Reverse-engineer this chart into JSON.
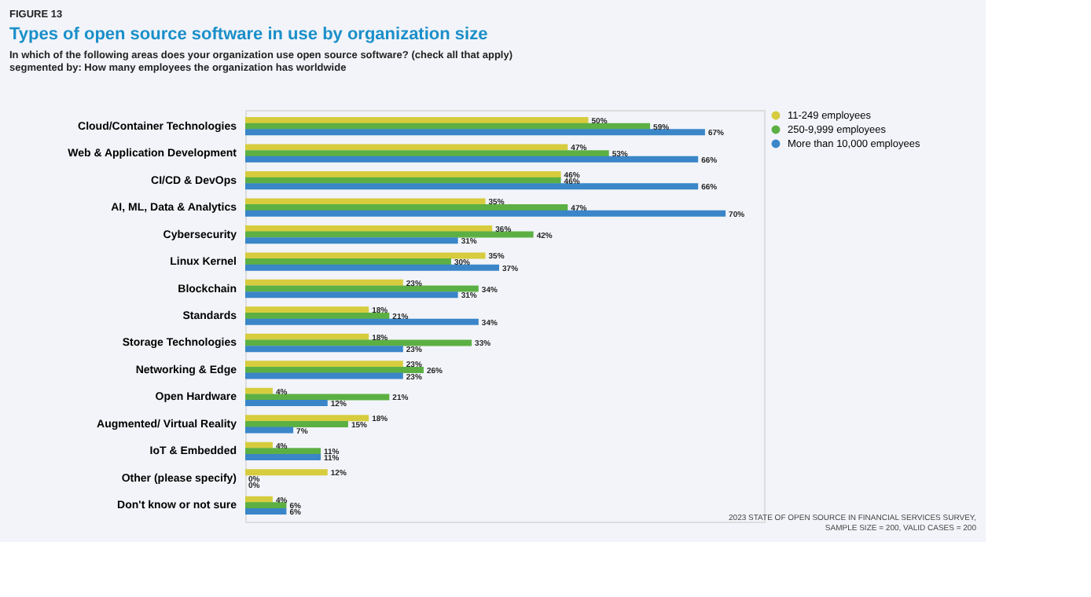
{
  "chart_data": {
    "type": "bar",
    "orientation": "horizontal",
    "title": "Types of open source software in use by organization size",
    "subtitle": "In which of the following areas does your organization use open source software? (check all that apply) segmented by: How many employees the organization has worldwide",
    "categories": [
      "Cloud/Container Technologies",
      "Web & Application Development",
      "CI/CD & DevOps",
      "AI, ML, Data & Analytics",
      "Cybersecurity",
      "Linux Kernel",
      "Blockchain",
      "Standards",
      "Storage Technologies",
      "Networking & Edge",
      "Open Hardware",
      "Augmented/ Virtual Reality",
      "IoT & Embedded",
      "Other (please specify)",
      "Don't know or not sure"
    ],
    "series": [
      {
        "name": "11-249 employees",
        "color": "#d6cc3e",
        "values": [
          50,
          47,
          46,
          35,
          36,
          35,
          23,
          18,
          18,
          23,
          4,
          18,
          4,
          12,
          4
        ],
        "value_labels": [
          "50%",
          "47%",
          "46%",
          "35%",
          "36%",
          "35%",
          "23%",
          "18%",
          "18%",
          "23%",
          "4%",
          "18%",
          "4%",
          "12%",
          "4%"
        ]
      },
      {
        "name": "250-9,999 employees",
        "color": "#5cb043",
        "values": [
          59,
          53,
          46,
          47,
          42,
          30,
          34,
          21,
          33,
          26,
          21,
          15,
          11,
          0,
          6
        ],
        "value_labels": [
          "59%",
          "53%",
          "46%",
          "47%",
          "42%",
          "30%",
          "34%",
          "21%",
          "33%",
          "26%",
          "21%",
          "15%",
          "11%",
          "0%",
          "6%"
        ]
      },
      {
        "name": "More than 10,000 employees",
        "color": "#3a86c8",
        "values": [
          67,
          66,
          66,
          70,
          31,
          37,
          31,
          34,
          23,
          23,
          12,
          7,
          11,
          0,
          6
        ],
        "value_labels": [
          "67%",
          "66%",
          "66%",
          "70%",
          "31%",
          "37%",
          "31%",
          "34%",
          "23%",
          "23%",
          "12%",
          "7%",
          "11%",
          "0%",
          "6%"
        ]
      }
    ],
    "legend": "right",
    "annotations": [
      "FIGURE 13",
      "2023 STATE OF OPEN SOURCE IN FINANCIAL SERVICES SURVEY, SAMPLE SIZE = 200, VALID CASES = 200"
    ]
  }
}
